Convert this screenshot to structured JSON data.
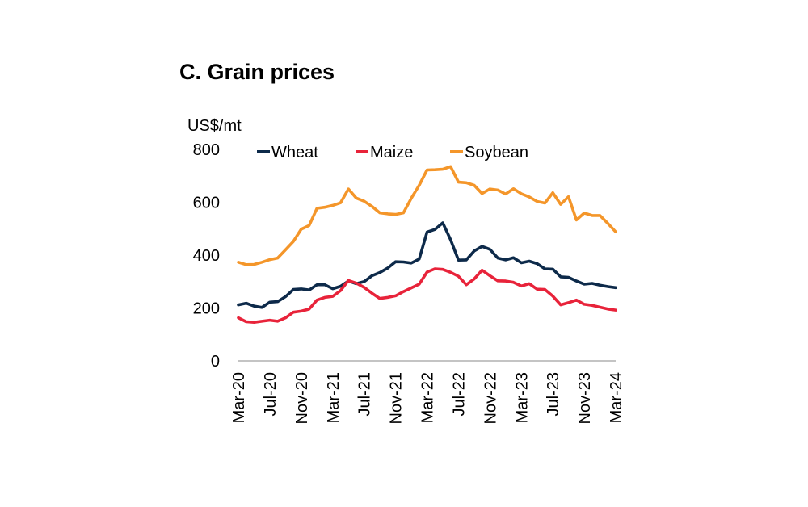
{
  "chart_data": {
    "type": "line",
    "title": "C. Grain prices",
    "ylabel": "US$/mt",
    "xlabel": "",
    "ylim": [
      0,
      800
    ],
    "yticks": [
      0,
      200,
      400,
      600,
      800
    ],
    "xtick_labels": [
      "Mar-20",
      "Jul-20",
      "Nov-20",
      "Mar-21",
      "Jul-21",
      "Nov-21",
      "Mar-22",
      "Jul-22",
      "Nov-22",
      "Mar-23",
      "Jul-23",
      "Nov-23",
      "Mar-24"
    ],
    "legend_position": "top",
    "x": [
      "Mar-20",
      "Apr-20",
      "May-20",
      "Jun-20",
      "Jul-20",
      "Aug-20",
      "Sep-20",
      "Oct-20",
      "Nov-20",
      "Dec-20",
      "Jan-21",
      "Feb-21",
      "Mar-21",
      "Apr-21",
      "May-21",
      "Jun-21",
      "Jul-21",
      "Aug-21",
      "Sep-21",
      "Oct-21",
      "Nov-21",
      "Dec-21",
      "Jan-22",
      "Feb-22",
      "Mar-22",
      "Apr-22",
      "May-22",
      "Jun-22",
      "Jul-22",
      "Aug-22",
      "Sep-22",
      "Oct-22",
      "Nov-22",
      "Dec-22",
      "Jan-23",
      "Feb-23",
      "Mar-23",
      "Apr-23",
      "May-23",
      "Jun-23",
      "Jul-23",
      "Aug-23",
      "Sep-23",
      "Oct-23",
      "Nov-23",
      "Dec-23",
      "Jan-24",
      "Feb-24",
      "Mar-24"
    ],
    "series": [
      {
        "name": "Wheat",
        "color": "#0d2a4a",
        "values": [
          212,
          218,
          207,
          202,
          222,
          224,
          243,
          270,
          272,
          268,
          288,
          288,
          273,
          282,
          302,
          292,
          300,
          322,
          334,
          351,
          375,
          374,
          370,
          385,
          487,
          497,
          522,
          458,
          381,
          382,
          416,
          433,
          422,
          389,
          382,
          390,
          371,
          377,
          368,
          348,
          347,
          318,
          316,
          302,
          290,
          293,
          286,
          281,
          277
        ]
      },
      {
        "name": "Maize",
        "color": "#e8233a",
        "values": [
          163,
          148,
          146,
          150,
          154,
          150,
          163,
          184,
          188,
          196,
          230,
          240,
          244,
          266,
          304,
          294,
          278,
          256,
          236,
          240,
          246,
          262,
          276,
          290,
          336,
          348,
          346,
          335,
          320,
          288,
          310,
          343,
          322,
          303,
          302,
          297,
          283,
          292,
          271,
          270,
          245,
          212,
          220,
          230,
          214,
          210,
          203,
          196,
          192
        ]
      },
      {
        "name": "Soybean",
        "color": "#f4962a",
        "values": [
          373,
          364,
          365,
          373,
          383,
          389,
          420,
          452,
          498,
          512,
          577,
          581,
          588,
          598,
          650,
          616,
          604,
          584,
          560,
          556,
          554,
          560,
          615,
          664,
          722,
          723,
          725,
          735,
          676,
          674,
          664,
          633,
          650,
          646,
          631,
          651,
          632,
          620,
          603,
          597,
          636,
          592,
          621,
          533,
          559,
          550,
          550,
          520,
          488
        ]
      }
    ]
  }
}
